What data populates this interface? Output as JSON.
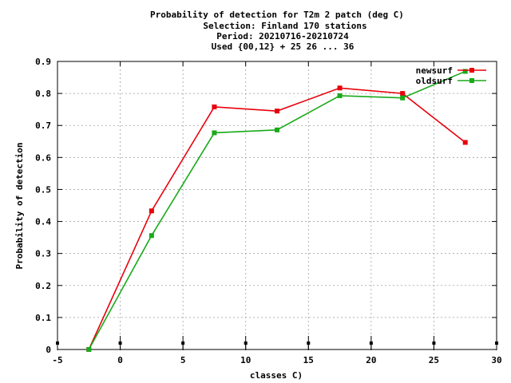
{
  "chart_data": {
    "type": "line",
    "title_lines": [
      "Probability of detection  for T2m 2 patch (deg C)",
      "Selection: Finland    170 stations",
      "Period: 20210716-20210724",
      "Used {00,12} + 25 26 ... 36"
    ],
    "xlabel": "classes C)",
    "ylabel": "Probability of detection",
    "xlim": [
      -5,
      30
    ],
    "ylim": [
      0,
      0.9
    ],
    "xticks": [
      -5,
      0,
      5,
      10,
      15,
      20,
      25,
      30
    ],
    "yticks": [
      0,
      0.1,
      0.2,
      0.3,
      0.4,
      0.5,
      0.6,
      0.7,
      0.8,
      0.9
    ],
    "xtick_labels": [
      "-5",
      "0",
      "5",
      "10",
      "15",
      "20",
      "25",
      "30"
    ],
    "ytick_labels": [
      "0",
      "0.1",
      "0.2",
      "0.3",
      "0.4",
      "0.5",
      "0.6",
      "0.7",
      "0.8",
      "0.9"
    ],
    "grid": true,
    "legend_position": "top-right",
    "class_markers_x": [
      -5,
      0,
      5,
      10,
      15,
      20,
      25,
      30
    ],
    "series": [
      {
        "name": "newsurf",
        "color": "#e8000b",
        "x": [
          -2.5,
          2.5,
          7.5,
          12.5,
          17.5,
          22.5,
          27.5
        ],
        "y": [
          0.0,
          0.433,
          0.758,
          0.745,
          0.817,
          0.8,
          0.647
        ]
      },
      {
        "name": "oldsurf",
        "color": "#1aaa1a",
        "x": [
          -2.5,
          2.5,
          7.5,
          12.5,
          17.5,
          22.5,
          27.5
        ],
        "y": [
          0.0,
          0.356,
          0.677,
          0.686,
          0.793,
          0.786,
          0.869
        ]
      }
    ]
  }
}
